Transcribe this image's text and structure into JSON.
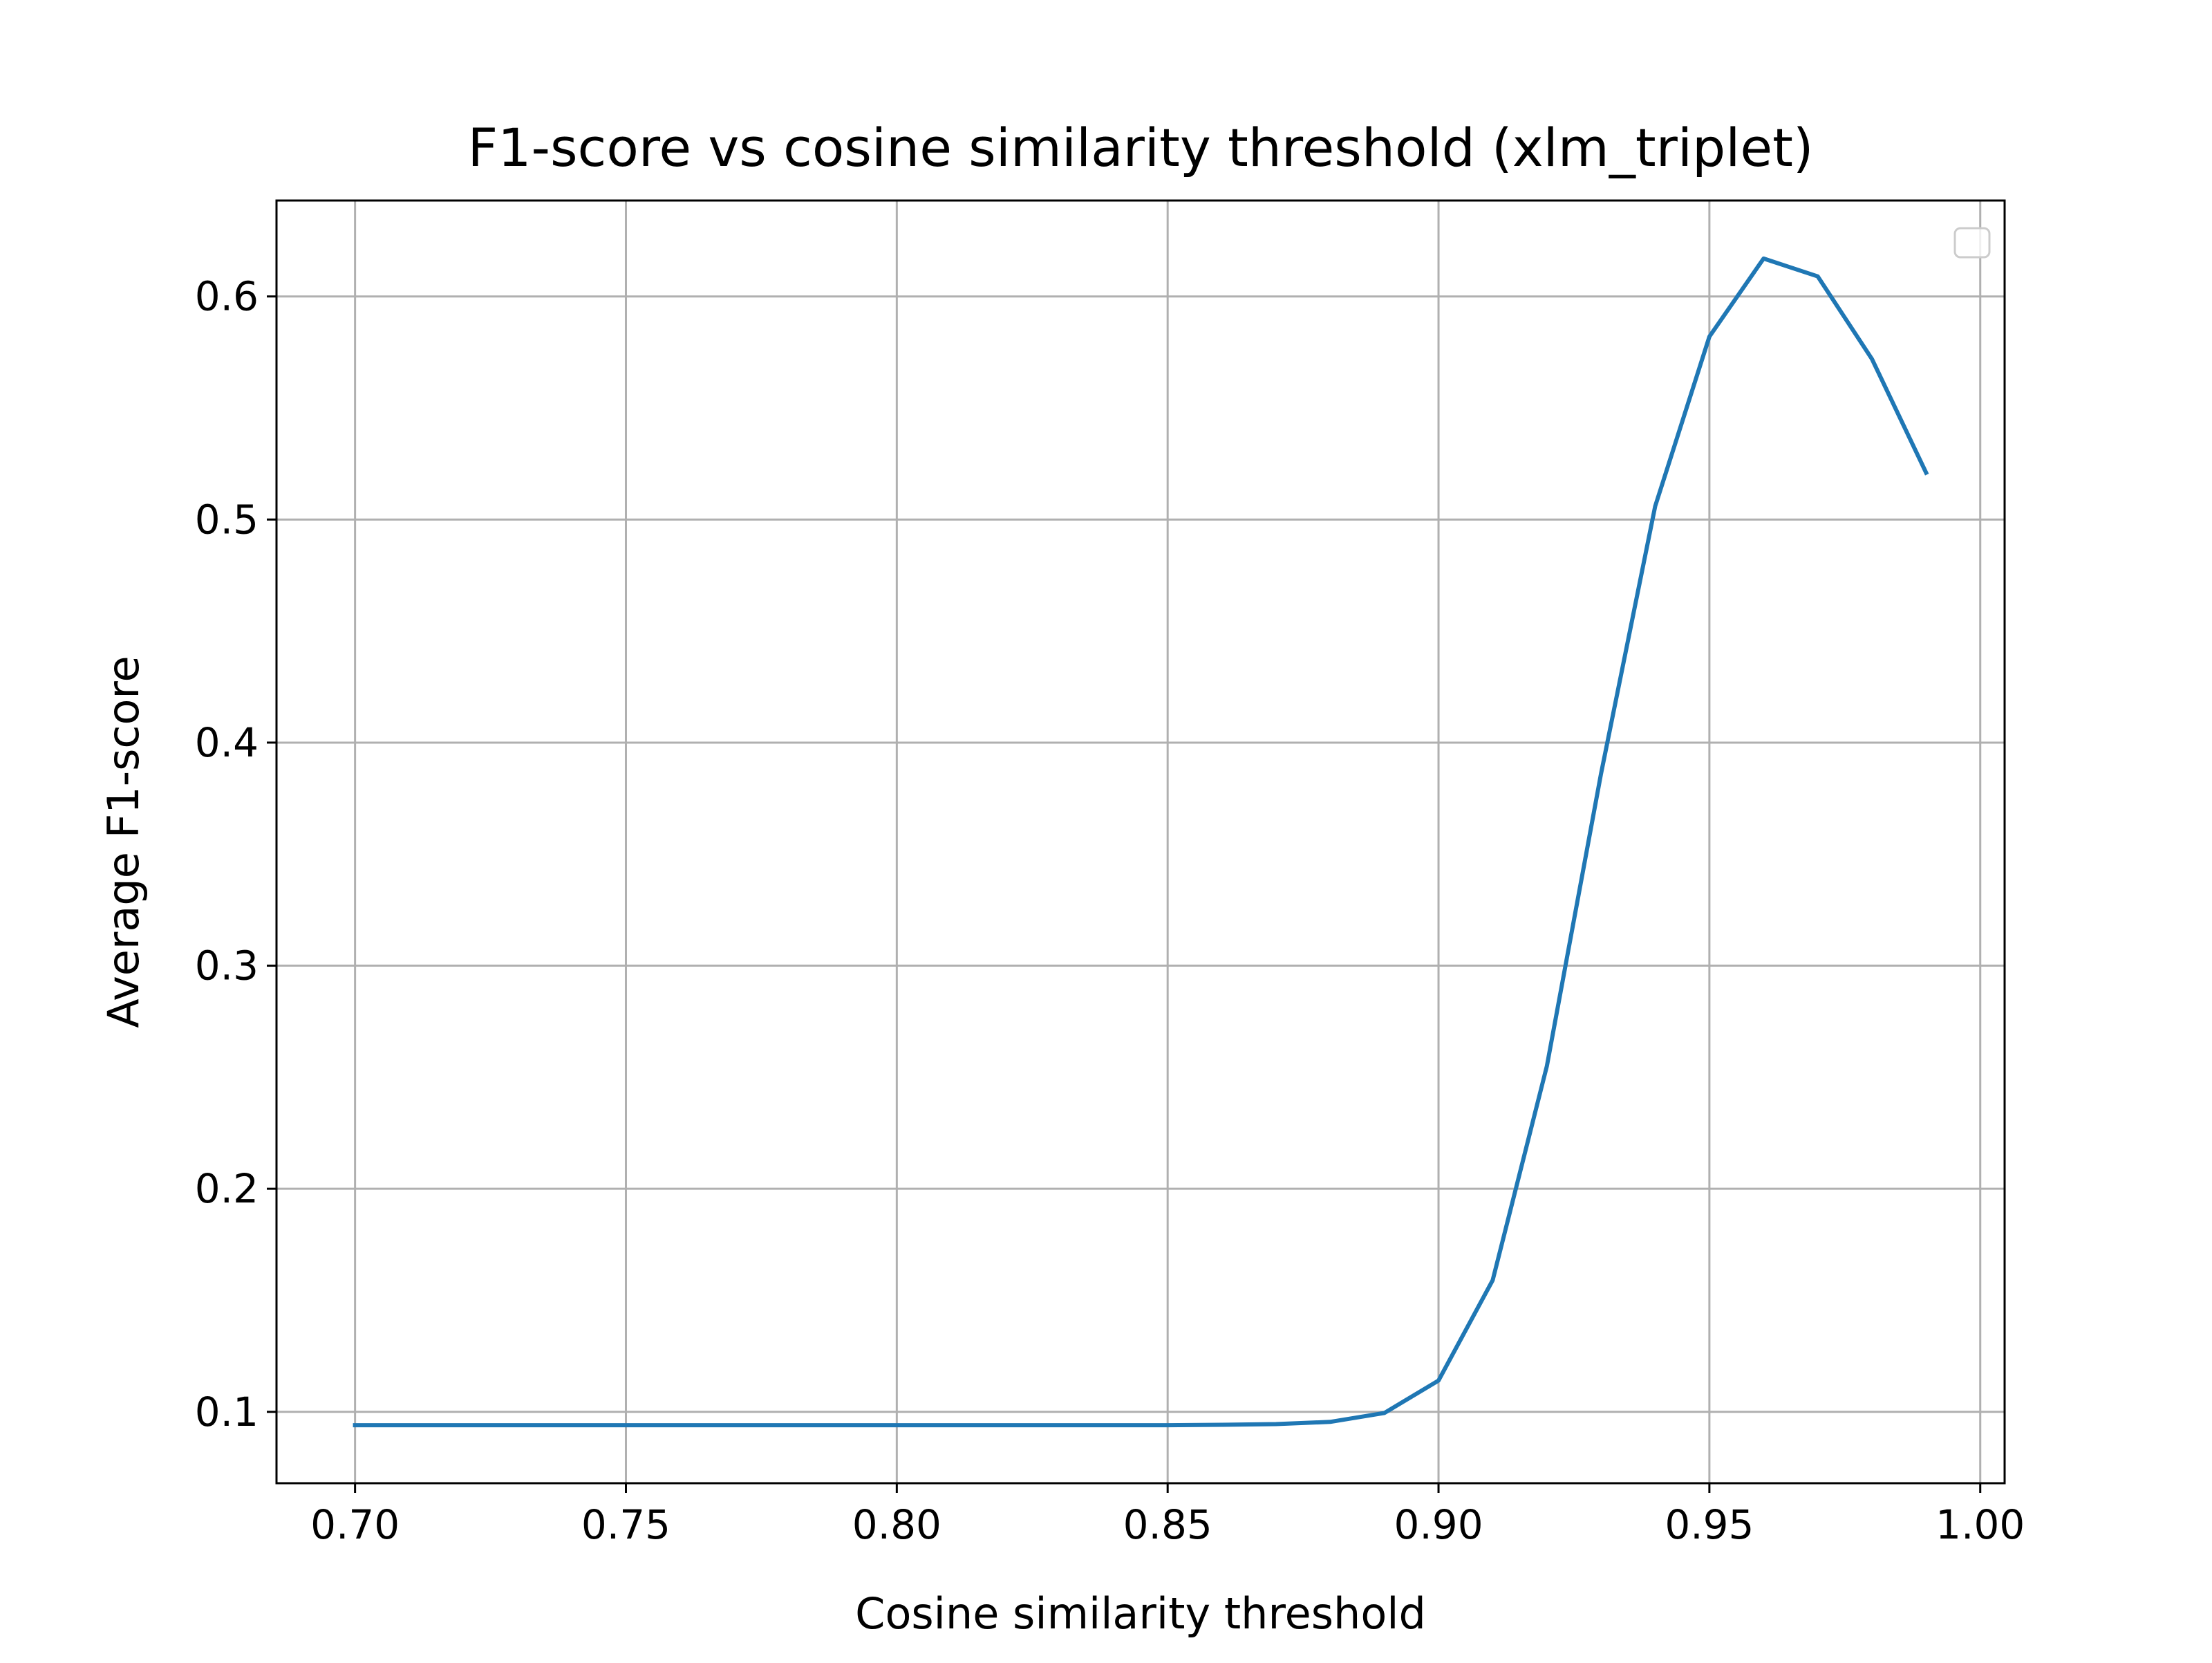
{
  "chart_data": {
    "type": "line",
    "title": "F1-score vs cosine similarity threshold (xlm_triplet)",
    "xlabel": "Cosine similarity threshold",
    "ylabel": "Average F1-score",
    "xlim": [
      0.6855,
      1.0045
    ],
    "ylim": [
      0.068,
      0.643
    ],
    "grid": true,
    "legend": "upper right, empty",
    "x_ticks": [
      0.7,
      0.75,
      0.8,
      0.85,
      0.9,
      0.95,
      1.0
    ],
    "x_tick_labels": [
      "0.70",
      "0.75",
      "0.80",
      "0.85",
      "0.90",
      "0.95",
      "1.00"
    ],
    "y_ticks": [
      0.1,
      0.2,
      0.3,
      0.4,
      0.5,
      0.6
    ],
    "y_tick_labels": [
      "0.1",
      "0.2",
      "0.3",
      "0.4",
      "0.5",
      "0.6"
    ],
    "series": [
      {
        "color": "#1f77b4",
        "x": [
          0.7,
          0.71,
          0.72,
          0.73,
          0.74,
          0.75,
          0.76,
          0.77,
          0.78,
          0.79,
          0.8,
          0.81,
          0.82,
          0.83,
          0.84,
          0.85,
          0.86,
          0.87,
          0.88,
          0.89,
          0.9,
          0.91,
          0.92,
          0.93,
          0.94,
          0.95,
          0.96,
          0.97,
          0.98,
          0.99
        ],
        "values": [
          0.094,
          0.094,
          0.094,
          0.094,
          0.094,
          0.094,
          0.094,
          0.094,
          0.094,
          0.094,
          0.094,
          0.094,
          0.094,
          0.094,
          0.094,
          0.094,
          0.0942,
          0.0945,
          0.0955,
          0.0995,
          0.114,
          0.159,
          0.255,
          0.386,
          0.506,
          0.582,
          0.617,
          0.609,
          0.572,
          0.521
        ]
      }
    ]
  }
}
